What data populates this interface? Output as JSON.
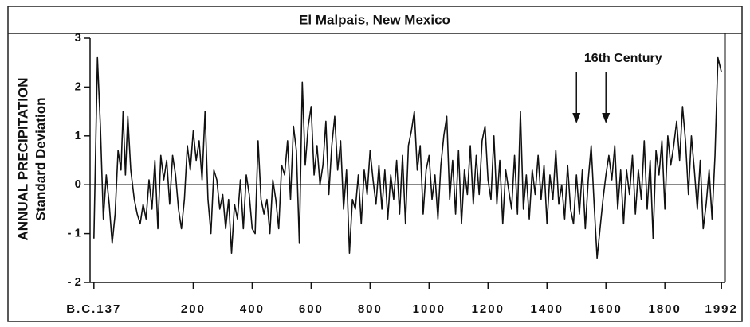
{
  "chart_data": {
    "type": "line",
    "title": "El Malpais, New Mexico",
    "ylabel": [
      "ANNUAL PRECIPITATION",
      "Standard Deviation"
    ],
    "annotation": {
      "text": "16th Century",
      "arrows": [
        1500,
        1600
      ]
    },
    "color": "#111111",
    "zero_line": true,
    "xlim": [
      -150,
      2005
    ],
    "ylim": [
      -2,
      3
    ],
    "yticks": [
      {
        "value": -2,
        "label": "- 2"
      },
      {
        "value": -1,
        "label": "- 1"
      },
      0,
      1,
      2,
      3
    ],
    "xticks": [
      {
        "value": -137,
        "label": "B.C.137"
      },
      200,
      400,
      600,
      800,
      1000,
      1200,
      1400,
      1600,
      1800,
      1992
    ],
    "x": [
      -137,
      -125,
      -115,
      -105,
      -95,
      -85,
      -75,
      -65,
      -55,
      -45,
      -38,
      -30,
      -22,
      -12,
      0,
      10,
      20,
      30,
      40,
      50,
      60,
      70,
      80,
      90,
      100,
      110,
      120,
      130,
      140,
      150,
      160,
      170,
      180,
      190,
      200,
      210,
      220,
      230,
      240,
      250,
      260,
      270,
      280,
      290,
      300,
      310,
      320,
      330,
      340,
      350,
      360,
      370,
      380,
      390,
      400,
      410,
      420,
      430,
      440,
      450,
      460,
      470,
      480,
      490,
      500,
      510,
      520,
      530,
      540,
      550,
      560,
      570,
      580,
      590,
      600,
      610,
      620,
      630,
      640,
      650,
      660,
      670,
      680,
      690,
      700,
      710,
      720,
      730,
      740,
      750,
      760,
      770,
      780,
      790,
      800,
      810,
      820,
      830,
      840,
      850,
      860,
      870,
      880,
      890,
      900,
      910,
      920,
      930,
      940,
      950,
      960,
      970,
      980,
      990,
      1000,
      1010,
      1020,
      1030,
      1040,
      1050,
      1060,
      1070,
      1080,
      1090,
      1100,
      1110,
      1120,
      1130,
      1140,
      1150,
      1160,
      1170,
      1180,
      1190,
      1200,
      1210,
      1220,
      1230,
      1240,
      1250,
      1260,
      1270,
      1280,
      1290,
      1300,
      1310,
      1320,
      1330,
      1340,
      1350,
      1360,
      1370,
      1380,
      1390,
      1400,
      1410,
      1420,
      1430,
      1440,
      1450,
      1460,
      1470,
      1480,
      1490,
      1500,
      1510,
      1520,
      1530,
      1540,
      1550,
      1560,
      1570,
      1580,
      1590,
      1600,
      1610,
      1620,
      1630,
      1640,
      1650,
      1660,
      1670,
      1680,
      1690,
      1700,
      1710,
      1720,
      1730,
      1740,
      1750,
      1760,
      1770,
      1780,
      1790,
      1800,
      1810,
      1820,
      1830,
      1840,
      1850,
      1860,
      1870,
      1880,
      1890,
      1900,
      1910,
      1920,
      1930,
      1940,
      1950,
      1960,
      1970,
      1980,
      1992
    ],
    "values": [
      -1.1,
      2.6,
      1.2,
      -0.7,
      0.2,
      -0.4,
      -1.2,
      -0.6,
      0.7,
      0.3,
      1.5,
      0.2,
      1.4,
      0.3,
      -0.3,
      -0.6,
      -0.8,
      -0.4,
      -0.7,
      0.1,
      -0.5,
      0.5,
      -0.9,
      0.6,
      0.1,
      0.5,
      -0.4,
      0.6,
      0.2,
      -0.5,
      -0.9,
      -0.3,
      0.8,
      0.3,
      1.1,
      0.5,
      0.9,
      0.1,
      1.5,
      -0.3,
      -1.0,
      0.3,
      0.1,
      -0.5,
      -0.2,
      -0.9,
      -0.3,
      -1.4,
      -0.4,
      -0.7,
      0.1,
      -0.9,
      0.2,
      -0.2,
      -0.9,
      -1.0,
      0.9,
      -0.3,
      -0.6,
      -0.3,
      -1.0,
      0.1,
      -0.3,
      -0.9,
      0.4,
      0.2,
      0.9,
      -0.3,
      1.2,
      0.7,
      -1.2,
      2.1,
      0.4,
      1.2,
      1.6,
      0.2,
      0.8,
      0.0,
      0.4,
      1.3,
      -0.2,
      0.8,
      1.4,
      0.3,
      0.9,
      -0.5,
      0.3,
      -1.4,
      -0.3,
      -0.5,
      0.2,
      -0.8,
      0.3,
      -0.2,
      0.7,
      0.1,
      -0.4,
      0.4,
      -0.5,
      0.3,
      -0.7,
      0.2,
      -0.3,
      0.5,
      -0.6,
      0.6,
      -0.8,
      0.8,
      1.1,
      1.5,
      0.3,
      0.8,
      -0.6,
      0.3,
      0.6,
      -0.3,
      0.2,
      -0.7,
      0.4,
      1.0,
      1.4,
      -0.3,
      0.5,
      -0.6,
      0.7,
      -0.8,
      0.3,
      -0.2,
      0.8,
      -0.4,
      0.6,
      -0.2,
      0.9,
      1.2,
      0.1,
      -0.3,
      1.0,
      -0.4,
      0.5,
      -0.8,
      0.3,
      -0.1,
      -0.5,
      0.6,
      -0.6,
      1.5,
      -0.5,
      0.2,
      -0.7,
      0.3,
      -0.2,
      0.6,
      -0.3,
      0.4,
      -0.8,
      0.2,
      -0.3,
      0.7,
      -0.4,
      0.0,
      -0.7,
      0.4,
      -0.5,
      -0.8,
      0.2,
      -0.6,
      0.3,
      -0.9,
      0.1,
      0.8,
      -0.4,
      -1.5,
      -0.9,
      -0.3,
      0.2,
      0.6,
      0.1,
      0.8,
      -0.5,
      0.3,
      -0.8,
      0.3,
      -0.2,
      0.6,
      -0.6,
      0.3,
      -0.3,
      0.9,
      -0.5,
      0.5,
      -1.1,
      0.7,
      0.2,
      0.9,
      -0.5,
      1.0,
      0.4,
      0.8,
      1.3,
      0.5,
      1.6,
      0.9,
      -0.2,
      1.0,
      0.3,
      -0.5,
      0.5,
      -0.9,
      -0.4,
      0.3,
      -0.7,
      0.6,
      2.6,
      2.3
    ]
  }
}
